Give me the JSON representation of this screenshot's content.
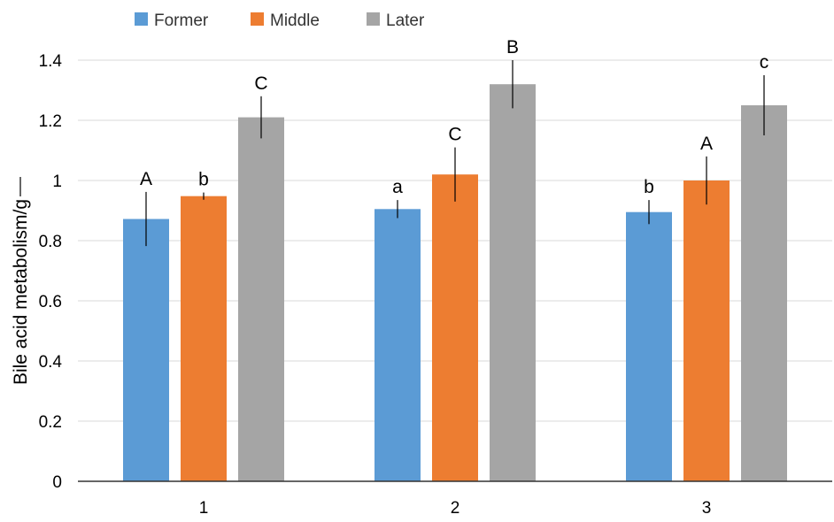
{
  "chart_data": {
    "type": "bar",
    "title": "",
    "xlabel": "",
    "ylabel": "Bile acid metabolism/g",
    "categories": [
      "1",
      "2",
      "3"
    ],
    "ylim": [
      0,
      1.4
    ],
    "yticks": [
      "0",
      "0.2",
      "0.4",
      "0.6",
      "0.8",
      "1",
      "1.2",
      "1.4"
    ],
    "grid": true,
    "legend_position": "top-left",
    "series": [
      {
        "name": "Former",
        "color": "#5B9BD5",
        "values": [
          0.872,
          0.905,
          0.895
        ],
        "error": [
          0.09,
          0.03,
          0.04
        ],
        "labels": [
          "A",
          "a",
          "b"
        ]
      },
      {
        "name": "Middle",
        "color": "#ED7D31",
        "values": [
          0.948,
          1.02,
          1.0
        ],
        "error": [
          0.012,
          0.09,
          0.08
        ],
        "labels": [
          "b",
          "C",
          "A"
        ]
      },
      {
        "name": "Later",
        "color": "#A5A5A5",
        "values": [
          1.21,
          1.32,
          1.25
        ],
        "error": [
          0.07,
          0.08,
          0.1
        ],
        "labels": [
          "C",
          "B",
          "c"
        ]
      }
    ]
  }
}
